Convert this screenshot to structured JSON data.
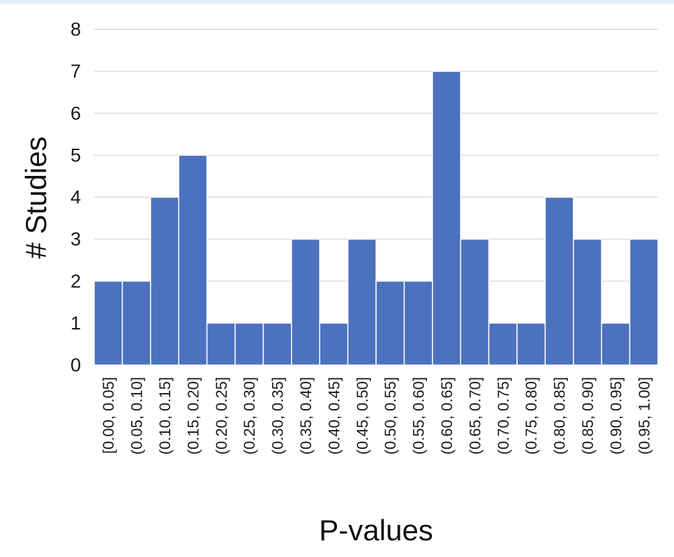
{
  "chart_data": {
    "type": "bar",
    "title": "",
    "xlabel": "P-values",
    "ylabel": "# Studies",
    "ylim": [
      0,
      8
    ],
    "yticks": [
      "0",
      "1",
      "2",
      "3",
      "4",
      "5",
      "6",
      "7",
      "8"
    ],
    "grid": true,
    "legend": "none",
    "bar_color": "#4c72bf",
    "grid_color": "#dcdcdc",
    "categories": [
      "[0.00, 0.05]",
      "(0.05, 0.10]",
      "(0.10, 0.15]",
      "(0.15, 0.20]",
      "(0.20, 0.25]",
      "(0.25, 0.30]",
      "(0.30, 0.35]",
      "(0.35, 0.40]",
      "(0.40, 0.45]",
      "(0.45, 0.50]",
      "(0.50, 0.55]",
      "(0.55, 0.60]",
      "(0.60, 0.65]",
      "(0.65, 0.70]",
      "(0.70, 0.75]",
      "(0.75, 0.80]",
      "(0.80, 0.85]",
      "(0.85, 0.90]",
      "(0.90, 0.95]",
      "(0.95, 1.00]"
    ],
    "values": [
      2,
      2,
      4,
      5,
      1,
      1,
      1,
      3,
      1,
      3,
      2,
      2,
      7,
      3,
      1,
      1,
      4,
      3,
      1,
      3
    ]
  }
}
